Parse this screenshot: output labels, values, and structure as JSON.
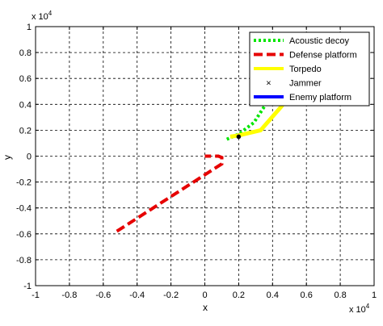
{
  "chart_data": {
    "type": "line",
    "xlabel": "x",
    "ylabel": "y",
    "x_multiplier": "x 10",
    "x_multiplier_exp": "4",
    "y_multiplier": "x 10",
    "y_multiplier_exp": "4",
    "xlim": [
      -1,
      1
    ],
    "ylim": [
      -1,
      1
    ],
    "xticks": [
      "-1",
      "-0.8",
      "-0.6",
      "-0.4",
      "-0.2",
      "0",
      "0.2",
      "0.4",
      "0.6",
      "0.8",
      "1"
    ],
    "yticks": [
      "1",
      "0.8",
      "0.6",
      "0.4",
      "0.2",
      "0",
      "-0.2",
      "-0.4",
      "-0.6",
      "-0.8",
      "-1"
    ],
    "xtick_values": [
      -1,
      -0.8,
      -0.6,
      -0.4,
      -0.2,
      0,
      0.2,
      0.4,
      0.6,
      0.8,
      1
    ],
    "ytick_values": [
      1,
      0.8,
      0.6,
      0.4,
      0.2,
      0,
      -0.2,
      -0.4,
      -0.6,
      -0.8,
      -1
    ],
    "grid": true,
    "legend_position": "top-right",
    "series": [
      {
        "name": "Acoustic decoy",
        "color": "#00e600",
        "style": "dotted",
        "points": [
          [
            0.13,
            0.13
          ],
          [
            0.2,
            0.17
          ],
          [
            0.29,
            0.26
          ],
          [
            0.36,
            0.4
          ]
        ]
      },
      {
        "name": "Defense platform",
        "color": "#e60000",
        "style": "dashed",
        "points": [
          [
            -0.52,
            -0.58
          ],
          [
            0.1,
            -0.06
          ],
          [
            0.1,
            -0.01
          ],
          [
            0.08,
            0.0
          ],
          [
            0.0,
            0.0
          ]
        ]
      },
      {
        "name": "Torpedo",
        "color": "#ffff00",
        "style": "solid",
        "points": [
          [
            0.15,
            0.15
          ],
          [
            0.2,
            0.16
          ],
          [
            0.33,
            0.2
          ],
          [
            0.45,
            0.38
          ],
          [
            0.5,
            0.47
          ]
        ]
      },
      {
        "name": "Jammer",
        "color": "#000000",
        "style": "marker",
        "points": [
          [
            0.2,
            0.15
          ]
        ]
      },
      {
        "name": "Enemy platform",
        "color": "#0000ff",
        "style": "solid",
        "points": []
      }
    ]
  }
}
